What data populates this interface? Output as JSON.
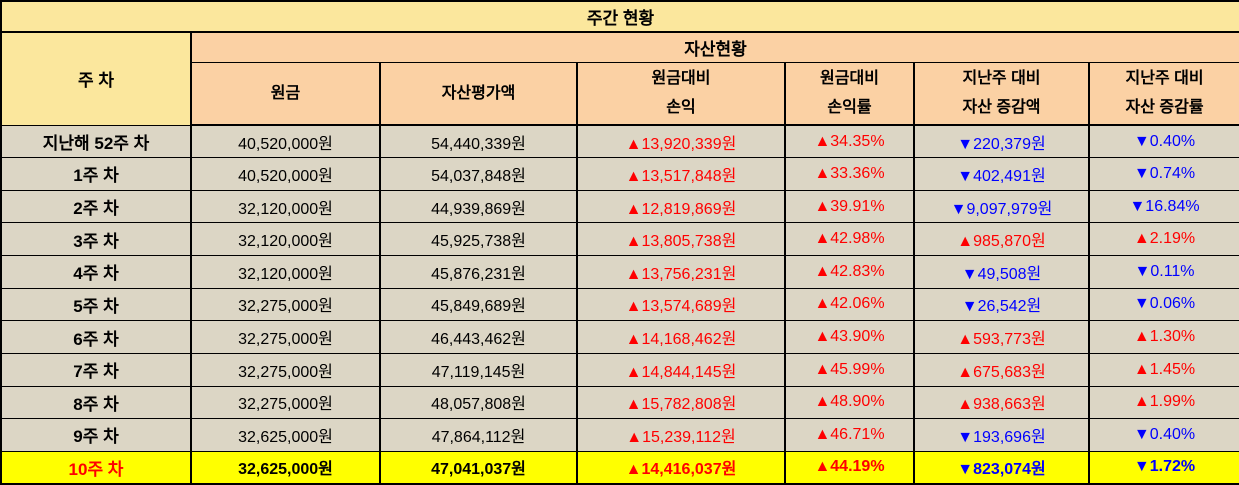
{
  "colors": {
    "header_yellow": "#FBE79D",
    "header_peach": "#FBD1A4",
    "row_tan": "#DCD6C5",
    "highlight_yellow": "#FFFF00",
    "gain_red": "#FF0000",
    "loss_blue": "#0000FF",
    "border_black": "#000000"
  },
  "title": "주간 현황",
  "header": {
    "week_column": "주 차",
    "group": "자산현황",
    "columns": [
      {
        "line1": "원금",
        "line2": ""
      },
      {
        "line1": "자산평가액",
        "line2": ""
      },
      {
        "line1": "원금대비",
        "line2": "손익"
      },
      {
        "line1": "원금대비",
        "line2": "손익률"
      },
      {
        "line1": "지난주 대비",
        "line2": "자산 증감액"
      },
      {
        "line1": "지난주 대비",
        "line2": "자산 증감률"
      }
    ]
  },
  "rows": [
    {
      "week": "지난해 52주 차",
      "highlight": false,
      "principal": "40,520,000원",
      "valuation": "54,440,339원",
      "profit": {
        "text": "▲13,920,339원",
        "color": "red"
      },
      "profit_rate": {
        "text": "▲34.35%",
        "color": "red"
      },
      "change": {
        "text": "▼220,379원",
        "color": "blue"
      },
      "change_rate": {
        "text": "▼0.40%",
        "color": "blue"
      }
    },
    {
      "week": "1주 차",
      "highlight": false,
      "principal": "40,520,000원",
      "valuation": "54,037,848원",
      "profit": {
        "text": "▲13,517,848원",
        "color": "red"
      },
      "profit_rate": {
        "text": "▲33.36%",
        "color": "red"
      },
      "change": {
        "text": "▼402,491원",
        "color": "blue"
      },
      "change_rate": {
        "text": "▼0.74%",
        "color": "blue"
      }
    },
    {
      "week": "2주 차",
      "highlight": false,
      "principal": "32,120,000원",
      "valuation": "44,939,869원",
      "profit": {
        "text": "▲12,819,869원",
        "color": "red"
      },
      "profit_rate": {
        "text": "▲39.91%",
        "color": "red"
      },
      "change": {
        "text": "▼9,097,979원",
        "color": "blue"
      },
      "change_rate": {
        "text": "▼16.84%",
        "color": "blue"
      }
    },
    {
      "week": "3주 차",
      "highlight": false,
      "principal": "32,120,000원",
      "valuation": "45,925,738원",
      "profit": {
        "text": "▲13,805,738원",
        "color": "red"
      },
      "profit_rate": {
        "text": "▲42.98%",
        "color": "red"
      },
      "change": {
        "text": "▲985,870원",
        "color": "red"
      },
      "change_rate": {
        "text": "▲2.19%",
        "color": "red"
      }
    },
    {
      "week": "4주 차",
      "highlight": false,
      "principal": "32,120,000원",
      "valuation": "45,876,231원",
      "profit": {
        "text": "▲13,756,231원",
        "color": "red"
      },
      "profit_rate": {
        "text": "▲42.83%",
        "color": "red"
      },
      "change": {
        "text": "▼49,508원",
        "color": "blue"
      },
      "change_rate": {
        "text": "▼0.11%",
        "color": "blue"
      }
    },
    {
      "week": "5주 차",
      "highlight": false,
      "principal": "32,275,000원",
      "valuation": "45,849,689원",
      "profit": {
        "text": "▲13,574,689원",
        "color": "red"
      },
      "profit_rate": {
        "text": "▲42.06%",
        "color": "red"
      },
      "change": {
        "text": "▼26,542원",
        "color": "blue"
      },
      "change_rate": {
        "text": "▼0.06%",
        "color": "blue"
      }
    },
    {
      "week": "6주 차",
      "highlight": false,
      "principal": "32,275,000원",
      "valuation": "46,443,462원",
      "profit": {
        "text": "▲14,168,462원",
        "color": "red"
      },
      "profit_rate": {
        "text": "▲43.90%",
        "color": "red"
      },
      "change": {
        "text": "▲593,773원",
        "color": "red"
      },
      "change_rate": {
        "text": "▲1.30%",
        "color": "red"
      }
    },
    {
      "week": "7주 차",
      "highlight": false,
      "principal": "32,275,000원",
      "valuation": "47,119,145원",
      "profit": {
        "text": "▲14,844,145원",
        "color": "red"
      },
      "profit_rate": {
        "text": "▲45.99%",
        "color": "red"
      },
      "change": {
        "text": "▲675,683원",
        "color": "red"
      },
      "change_rate": {
        "text": "▲1.45%",
        "color": "red"
      }
    },
    {
      "week": "8주 차",
      "highlight": false,
      "principal": "32,275,000원",
      "valuation": "48,057,808원",
      "profit": {
        "text": "▲15,782,808원",
        "color": "red"
      },
      "profit_rate": {
        "text": "▲48.90%",
        "color": "red"
      },
      "change": {
        "text": "▲938,663원",
        "color": "red"
      },
      "change_rate": {
        "text": "▲1.99%",
        "color": "red"
      }
    },
    {
      "week": "9주 차",
      "highlight": false,
      "principal": "32,625,000원",
      "valuation": "47,864,112원",
      "profit": {
        "text": "▲15,239,112원",
        "color": "red"
      },
      "profit_rate": {
        "text": "▲46.71%",
        "color": "red"
      },
      "change": {
        "text": "▼193,696원",
        "color": "blue"
      },
      "change_rate": {
        "text": "▼0.40%",
        "color": "blue"
      }
    },
    {
      "week": "10주 차",
      "highlight": true,
      "principal": "32,625,000원",
      "valuation": "47,041,037원",
      "profit": {
        "text": "▲14,416,037원",
        "color": "red"
      },
      "profit_rate": {
        "text": "▲44.19%",
        "color": "red"
      },
      "change": {
        "text": "▼823,074원",
        "color": "blue"
      },
      "change_rate": {
        "text": "▼1.72%",
        "color": "blue"
      }
    }
  ]
}
